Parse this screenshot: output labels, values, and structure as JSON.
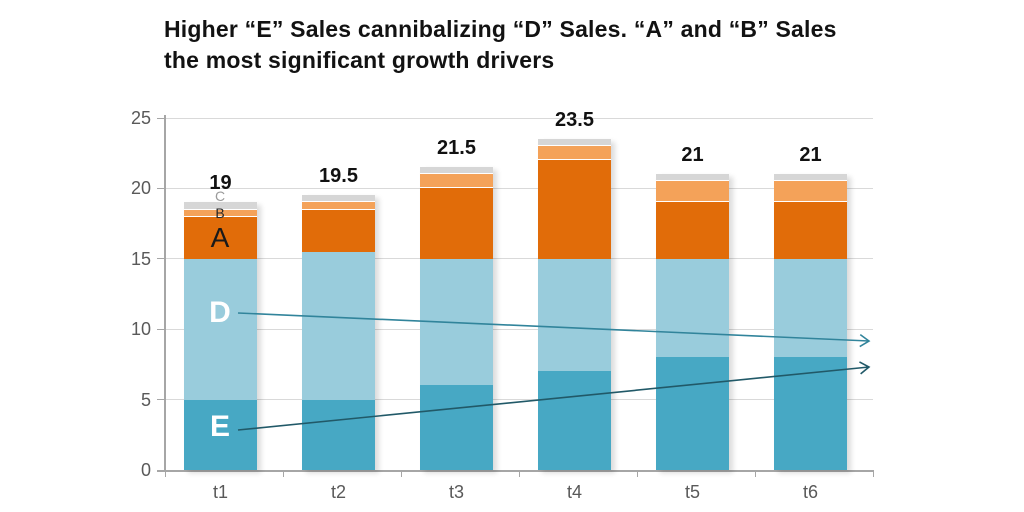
{
  "title": "Higher “E” Sales cannibalizing “D” Sales. “A” and “B” Sales\nthe most significant growth drivers",
  "chart_data": {
    "type": "bar",
    "stacked": true,
    "title": "Higher “E” Sales cannibalizing “D” Sales. “A” and “B” Sales the most significant growth drivers",
    "categories": [
      "t1",
      "t2",
      "t3",
      "t4",
      "t5",
      "t6"
    ],
    "series": [
      {
        "name": "E",
        "color": "#47a8c4",
        "values": [
          5,
          5,
          6,
          7,
          8,
          8
        ]
      },
      {
        "name": "D",
        "color": "#99ccdc",
        "values": [
          10,
          10.5,
          9,
          8,
          7,
          7
        ]
      },
      {
        "name": "A",
        "color": "#e16c09",
        "values": [
          3,
          3,
          5,
          7,
          4,
          4
        ]
      },
      {
        "name": "B",
        "color": "#f4a259",
        "values": [
          0.5,
          0.5,
          1,
          1,
          1.5,
          1.5
        ]
      },
      {
        "name": "C",
        "color": "#d6d6d6",
        "values": [
          0.5,
          0.5,
          0.5,
          0.5,
          0.5,
          0.5
        ]
      }
    ],
    "totals_display": [
      "19",
      "19.5",
      "21.5",
      "23.5",
      "21",
      "21"
    ],
    "xlabel": "",
    "ylabel": "",
    "ylim": [
      0,
      25
    ],
    "yticks": [
      0,
      5,
      10,
      15,
      20,
      25
    ],
    "grid": true,
    "legend_position": "none",
    "segment_labels_on_first_bar": [
      {
        "text": "C",
        "value_pos": 19.45
      },
      {
        "text": "B",
        "value_pos": 18.25
      },
      {
        "text": "A",
        "value_pos": 16.45
      },
      {
        "text": "D",
        "value_pos": 11.15
      },
      {
        "text": "E",
        "value_pos": 3.05
      }
    ],
    "trend_arrows": [
      {
        "name": "d-sales-declining-arrow",
        "color": "#31849b"
      },
      {
        "name": "e-sales-growing-arrow",
        "color": "#215968"
      }
    ],
    "style_colors": {
      "gridline": "#d9d9d9",
      "axis": "#a6a6a6",
      "tick_text": "#595959",
      "value_label": "#111111"
    }
  }
}
